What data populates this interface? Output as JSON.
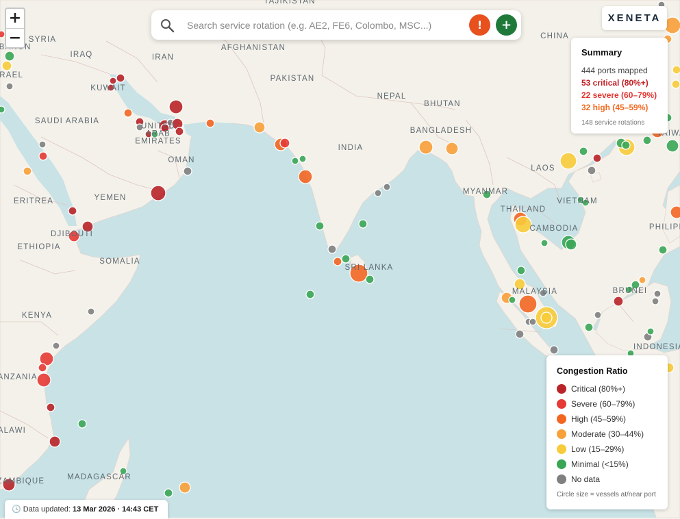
{
  "search": {
    "placeholder": "Search service rotation (e.g. AE2, FE6, Colombo, MSC...)",
    "alert_symbol": "!",
    "add_symbol": "+"
  },
  "zoom": {
    "in_label": "+",
    "out_label": "−"
  },
  "brand": {
    "logo_text": "XENETA"
  },
  "summary": {
    "title": "Summary",
    "ports_mapped": "444 ports mapped",
    "critical": "53 critical (80%+)",
    "severe": "22 severe (60–79%)",
    "high": "32 high (45–59%)",
    "rotations": "148 service rotations"
  },
  "legend": {
    "title": "Congestion Ratio",
    "items": [
      {
        "label": "Critical (80%+)",
        "color": "#b92428"
      },
      {
        "label": "Severe (60–79%)",
        "color": "#e63a35"
      },
      {
        "label": "High (45–59%)",
        "color": "#f26622"
      },
      {
        "label": "Moderate (30–44%)",
        "color": "#f8a03a"
      },
      {
        "label": "Low (15–29%)",
        "color": "#f7cb3a"
      },
      {
        "label": "Minimal (<15%)",
        "color": "#3aa655"
      },
      {
        "label": "No data",
        "color": "#808080"
      }
    ],
    "note": "Circle size = vessels at/near port"
  },
  "footer": {
    "label": "Data updated:",
    "value": "13 Mar 2026 · 14:43 CET"
  },
  "place_labels": [
    "TAJIKISTAN",
    "SYRIA",
    "LEBANON",
    "IRAQ",
    "IRAN",
    "AFGHANISTAN",
    "CHINA",
    "PAKISTAN",
    "KUWAIT",
    "NEPAL",
    "BHUTAN",
    "SAUDI ARABIA",
    "BANGLADESH",
    "UNITED ARAB EMIRATES",
    "INDIA",
    "OMAN",
    "LAOS",
    "MYANMAR",
    "ERITREA",
    "YEMEN",
    "THAILAND",
    "VIETNAM",
    "DJIBOUTI",
    "CAMBODIA",
    "ETHIOPIA",
    "SOMALIA",
    "SRI LANKA",
    "MALAYSIA",
    "BRUNEI",
    "KENYA",
    "INDONESIA",
    "TANZANIA",
    "MALAWI",
    "MADAGASCAR",
    "MOZAMBIQUE",
    "PHILIPPINES",
    "ISRAEL",
    "TAIWAN"
  ]
}
